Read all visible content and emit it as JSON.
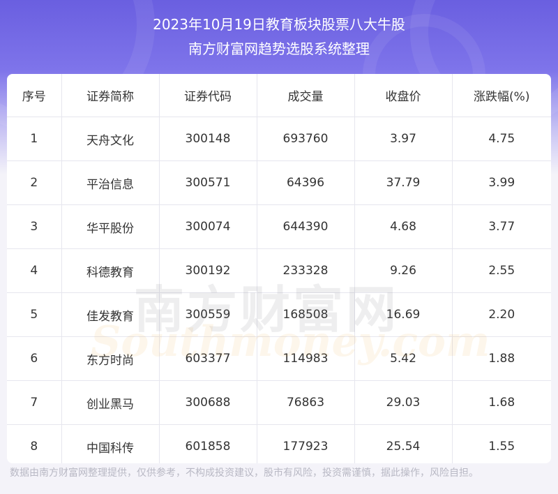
{
  "header": {
    "title_line1": "2023年10月19日教育板块股票八大牛股",
    "title_line2": "南方财富网趋势选股系统整理"
  },
  "table": {
    "columns": [
      "序号",
      "证券简称",
      "证券代码",
      "成交量",
      "收盘价",
      "涨跌幅(%)"
    ],
    "rows": [
      [
        "1",
        "天舟文化",
        "300148",
        "693760",
        "3.97",
        "4.75"
      ],
      [
        "2",
        "平治信息",
        "300571",
        "64396",
        "37.79",
        "3.99"
      ],
      [
        "3",
        "华平股份",
        "300074",
        "644390",
        "4.68",
        "3.77"
      ],
      [
        "4",
        "科德教育",
        "300192",
        "233328",
        "9.26",
        "2.55"
      ],
      [
        "5",
        "佳发教育",
        "300559",
        "168508",
        "16.69",
        "2.20"
      ],
      [
        "6",
        "东方时尚",
        "603377",
        "114983",
        "5.42",
        "1.88"
      ],
      [
        "7",
        "创业黑马",
        "300688",
        "76863",
        "29.03",
        "1.68"
      ],
      [
        "8",
        "中国科传",
        "601858",
        "177923",
        "25.54",
        "1.55"
      ]
    ]
  },
  "watermark": {
    "cn": "南方财富网",
    "en": "Southmoney.com"
  },
  "footer": {
    "disclaimer": "数据由南方财富网整理提供，仅供参考，不构成投资建议，股市有风险，投资需谨慎，据此操作，风险自担。"
  },
  "colors": {
    "header_gradient_top": "#6a5fe0",
    "header_gradient_bottom": "#c9c4f4",
    "page_background": "#f4f3f9",
    "card_background": "#ffffff",
    "text": "#333333",
    "disclaimer_text": "#b8b8c4"
  }
}
